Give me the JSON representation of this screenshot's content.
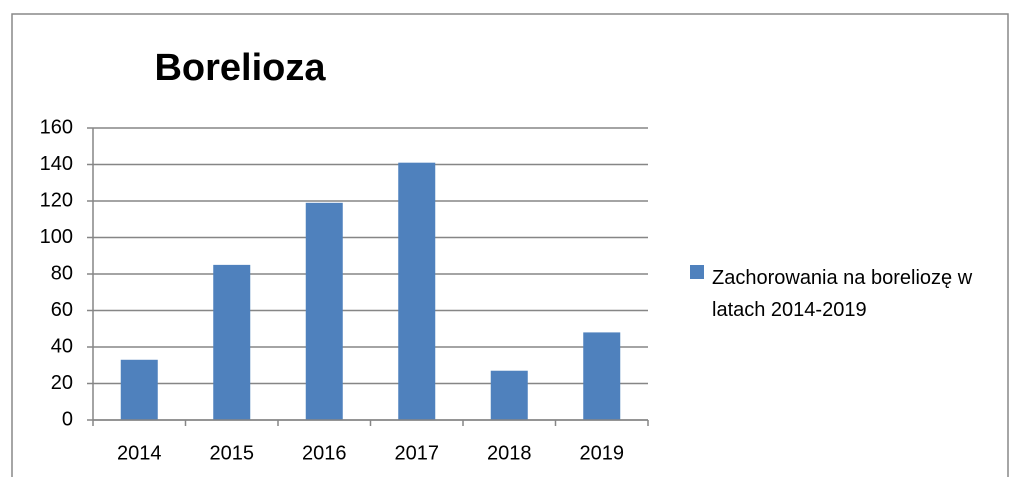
{
  "chart_data": {
    "type": "bar",
    "title": "Borelioza",
    "categories": [
      "2014",
      "2015",
      "2016",
      "2017",
      "2018",
      "2019"
    ],
    "series": [
      {
        "name": "Zachorowania na boreliozę w latach 2014-2019",
        "color": "#4f81bd",
        "values": [
          33,
          85,
          119,
          141,
          27,
          48
        ]
      }
    ],
    "ylim": [
      0,
      160
    ],
    "yticks": [
      0,
      20,
      40,
      60,
      80,
      100,
      120,
      140,
      160
    ],
    "grid": true,
    "legend": "right"
  }
}
